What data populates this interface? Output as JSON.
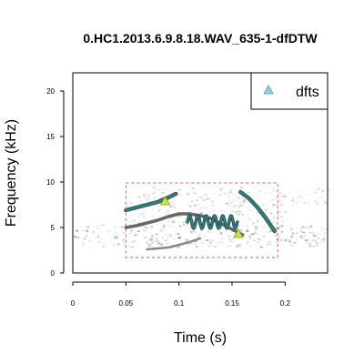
{
  "chart_data": {
    "type": "scatter",
    "title": "0.HC1.2013.6.9.8.18.WAV_635-1-dfDTW",
    "xlabel": "Time (s)",
    "ylabel": "Frequency (kHz)",
    "xlim": [
      0,
      0.24
    ],
    "ylim": [
      0,
      22
    ],
    "x_ticks": [
      "0",
      "0.05",
      "0.1",
      "0.15",
      "0.2"
    ],
    "y_ticks": [
      "0",
      "5",
      "10",
      "15",
      "20"
    ],
    "legend": {
      "position": "top-right",
      "entries": [
        {
          "label": "dfts",
          "marker": "triangle",
          "color": "#8fd3e0"
        }
      ]
    },
    "selection_box": {
      "x": [
        0.05,
        0.193
      ],
      "y": [
        1.7,
        9.9
      ],
      "color": "#e05a5a"
    },
    "series": [
      {
        "name": "dfts",
        "marker": "triangle",
        "color": "#c8e63a",
        "points": [
          {
            "x": 0.087,
            "y": 7.9
          },
          {
            "x": 0.156,
            "y": 4.3
          }
        ]
      }
    ],
    "contours": {
      "color": "#0f8f8f",
      "upper_trace": [
        [
          0.05,
          6.9
        ],
        [
          0.06,
          7.2
        ],
        [
          0.07,
          7.5
        ],
        [
          0.08,
          7.8
        ],
        [
          0.09,
          8.3
        ],
        [
          0.097,
          8.7
        ]
      ],
      "harmonic_trace": [
        [
          0.05,
          5.0
        ],
        [
          0.06,
          5.2
        ],
        [
          0.07,
          5.5
        ],
        [
          0.08,
          5.8
        ],
        [
          0.09,
          6.2
        ],
        [
          0.1,
          6.5
        ],
        [
          0.11,
          6.5
        ],
        [
          0.12,
          6.3
        ],
        [
          0.13,
          6.0
        ],
        [
          0.14,
          5.4
        ],
        [
          0.15,
          4.8
        ],
        [
          0.16,
          4.2
        ]
      ],
      "wave_trace": {
        "x_start": 0.108,
        "x_end": 0.155,
        "y_center": 5.6,
        "amplitude": 0.7,
        "cycles": 6
      },
      "right_trace": [
        [
          0.158,
          8.9
        ],
        [
          0.166,
          8.2
        ],
        [
          0.174,
          7.2
        ],
        [
          0.182,
          6.0
        ],
        [
          0.19,
          4.6
        ]
      ]
    },
    "grid": false
  }
}
